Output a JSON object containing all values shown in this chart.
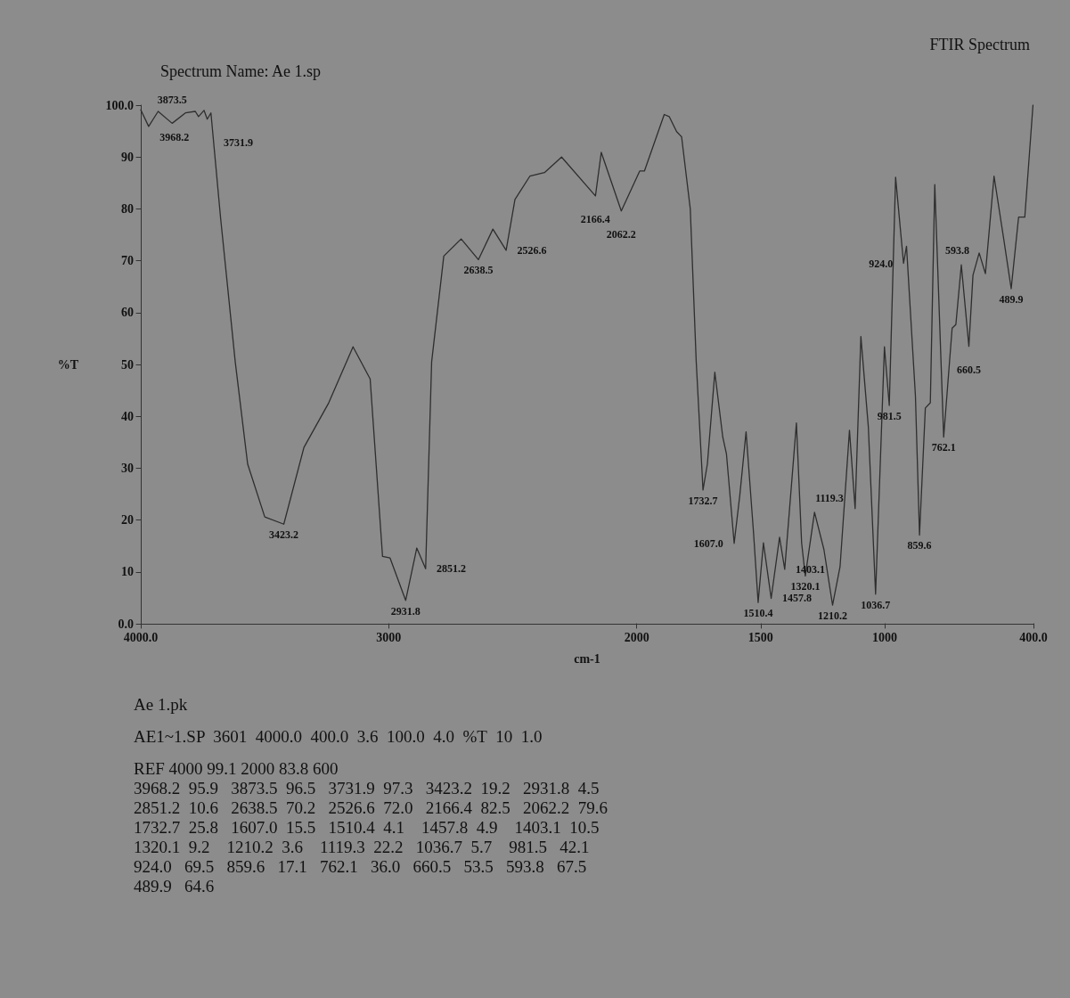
{
  "chart_data": {
    "type": "line",
    "title": "FTIR Spectrum",
    "subtitle": "Spectrum Name: Ae 1.sp",
    "xlabel": "cm-1",
    "ylabel": "%T",
    "xlim": [
      4000,
      400
    ],
    "xticks": [
      {
        "value": 4000,
        "label": "4000.0"
      },
      3000,
      2000,
      1500,
      1000,
      {
        "value": 400,
        "label": "400.0"
      }
    ],
    "ylim": [
      0,
      100
    ],
    "yticks": [
      {
        "value": 0,
        "label": "0.0"
      },
      10,
      20,
      30,
      40,
      50,
      60,
      70,
      80,
      90,
      {
        "value": 100,
        "label": "100.0"
      }
    ],
    "grid": false,
    "marker": "none",
    "line_style": "solid",
    "series": [
      {
        "color": "#2e2e2e",
        "x": [
          4000,
          3968.2,
          3930,
          3873.5,
          3820,
          3780,
          3767,
          3745,
          3731.9,
          3717,
          3678,
          3619,
          3569,
          3500,
          3423.2,
          3342,
          3242,
          3144,
          3075,
          3025,
          2995,
          2931.8,
          2887,
          2851.2,
          2827,
          2778,
          2708,
          2638.5,
          2580,
          2526.6,
          2491,
          2431,
          2372,
          2303,
          2166.4,
          2143,
          2062.2,
          1988,
          1969,
          1889,
          1869,
          1839,
          1819,
          1784,
          1760,
          1732.7,
          1715,
          1685,
          1653,
          1638,
          1607.0,
          1584,
          1559,
          1529,
          1510.4,
          1489,
          1457.8,
          1424,
          1403.1,
          1356,
          1335,
          1320.1,
          1283,
          1245,
          1210.2,
          1180,
          1142,
          1119.3,
          1096,
          1066,
          1036.7,
          1001,
          981.5,
          956,
          924.0,
          912,
          876,
          859.6,
          836,
          816,
          798,
          762.1,
          728,
          713,
          691,
          660.5,
          644,
          619,
          593.8,
          559,
          520,
          489.9,
          460,
          435,
          402
        ],
        "values": [
          99.1,
          95.9,
          98.8,
          96.5,
          98.5,
          98.8,
          97.8,
          99,
          97.3,
          98.5,
          78.2,
          50.5,
          30.8,
          20.6,
          19.2,
          34,
          42.6,
          53.4,
          47.2,
          13,
          12.7,
          4.5,
          14.6,
          10.6,
          50.5,
          70.9,
          74.2,
          70.2,
          76.1,
          72.0,
          81.8,
          86.3,
          87,
          90,
          82.5,
          90.9,
          79.6,
          87.3,
          87.3,
          98.2,
          97.8,
          94.9,
          93.9,
          80,
          50.5,
          25.8,
          30.8,
          48.5,
          36,
          32.7,
          15.5,
          24.9,
          37,
          17.6,
          4.1,
          15.6,
          4.9,
          16.7,
          10.5,
          38.7,
          15.6,
          9.2,
          21.5,
          14.3,
          3.6,
          11,
          37.3,
          22.2,
          55.4,
          38,
          5.7,
          53.4,
          42.1,
          86.1,
          69.5,
          72.8,
          43.9,
          17.1,
          41.6,
          42.6,
          84.7,
          36.0,
          57,
          57.7,
          69.2,
          53.5,
          67.2,
          71.5,
          67.5,
          86.3,
          74.2,
          64.6,
          78.4,
          78.4,
          100
        ]
      }
    ],
    "annotations": [
      {
        "text": "3968.2",
        "x": 3968.2,
        "y": 95.9
      },
      {
        "text": "3873.5",
        "x": 3873.5,
        "y": 96.5
      },
      {
        "text": "3731.9",
        "x": 3731.9,
        "y": 97.3
      },
      {
        "text": "3423.2",
        "x": 3423.2,
        "y": 19.2
      },
      {
        "text": "2931.8",
        "x": 2931.8,
        "y": 4.5
      },
      {
        "text": "2851.2",
        "x": 2851.2,
        "y": 10.6
      },
      {
        "text": "2638.5",
        "x": 2638.5,
        "y": 70.2
      },
      {
        "text": "2526.6",
        "x": 2526.6,
        "y": 72.0
      },
      {
        "text": "2166.4",
        "x": 2166.4,
        "y": 82.5
      },
      {
        "text": "2062.2",
        "x": 2062.2,
        "y": 79.6
      },
      {
        "text": "1732.7",
        "x": 1732.7,
        "y": 25.8
      },
      {
        "text": "1607.0",
        "x": 1607.0,
        "y": 15.5
      },
      {
        "text": "1510.4",
        "x": 1510.4,
        "y": 4.1
      },
      {
        "text": "1457.8",
        "x": 1457.8,
        "y": 4.9
      },
      {
        "text": "1403.1",
        "x": 1403.1,
        "y": 10.5
      },
      {
        "text": "1320.1",
        "x": 1320.1,
        "y": 9.2
      },
      {
        "text": "1210.2",
        "x": 1210.2,
        "y": 3.6
      },
      {
        "text": "1119.3",
        "x": 1119.3,
        "y": 22.2
      },
      {
        "text": "1036.7",
        "x": 1036.7,
        "y": 5.7
      },
      {
        "text": "981.5",
        "x": 981.5,
        "y": 42.1
      },
      {
        "text": "924.0",
        "x": 924.0,
        "y": 69.5
      },
      {
        "text": "859.6",
        "x": 859.6,
        "y": 17.1
      },
      {
        "text": "762.1",
        "x": 762.1,
        "y": 36.0
      },
      {
        "text": "660.5",
        "x": 660.5,
        "y": 53.5
      },
      {
        "text": "593.8",
        "x": 593.8,
        "y": 67.5
      },
      {
        "text": "489.9",
        "x": 489.9,
        "y": 64.6
      },
      "Ae 1.pk",
      "AE1~1.SP  3601  4000.0  400.0  3.6  100.0  4.0  %T  10  1.0",
      "REF 4000 99.1 2000 83.8 600",
      "3968.2  95.9   3873.5  96.5   3731.9  97.3   3423.2  19.2   2931.8  4.5",
      "2851.2  10.6   2638.5  70.2   2526.6  72.0   2166.4  82.5   2062.2  79.6",
      "1732.7  25.8   1607.0  15.5   1510.4  4.1    1457.8  4.9    1403.1  10.5",
      "1320.1  9.2    1210.2  3.6    1119.3  22.2   1036.7  5.7    981.5   42.1",
      "924.0   69.5   859.6   17.1   762.1   36.0   660.5   53.5   593.8   67.5",
      "489.9   64.6"
    ]
  }
}
